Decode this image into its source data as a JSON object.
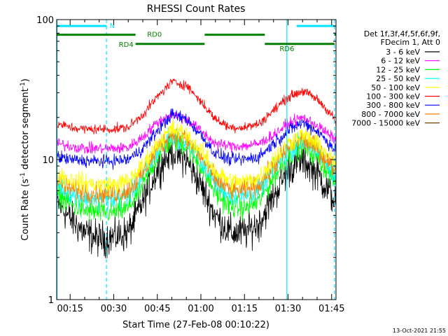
{
  "chart_data": {
    "type": "line",
    "title": "RHESSI Count Rates",
    "xlabel": "Start Time (27-Feb-08 00:10:22)",
    "ylabel": "Count Rate (s⁻¹ detector segment⁻¹)",
    "ylabel_main": "Count Rate (s",
    "ylabel_sup1": "-1",
    "ylabel_mid": " detector segment",
    "ylabel_sup2": "-1",
    "ylabel_end": ")",
    "yscale": "log",
    "ylim": [
      1,
      100
    ],
    "yticks": [
      "1",
      "10",
      "100"
    ],
    "xlim_minutes": [
      10.37,
      106.5
    ],
    "xticks": [
      {
        "m": 15,
        "label": "00:15"
      },
      {
        "m": 30,
        "label": "00:30"
      },
      {
        "m": 45,
        "label": "00:45"
      },
      {
        "m": 60,
        "label": "01:00"
      },
      {
        "m": 75,
        "label": "01:15"
      },
      {
        "m": 90,
        "label": "01:30"
      },
      {
        "m": 105,
        "label": "01:45"
      }
    ],
    "legend_header": [
      "Det 1f,3f,4f,5f,6f,9f,",
      "FDecim 1, Att 0"
    ],
    "legend_position": "right",
    "x_minutes": [
      10.4,
      15,
      20,
      25,
      30,
      35,
      40,
      45,
      50,
      55,
      60,
      65,
      70,
      75,
      80,
      85,
      90,
      95,
      100,
      105,
      106.5
    ],
    "series": [
      {
        "name": "3 - 6 keV",
        "color": "#000000",
        "values": [
          5.0,
          3.8,
          3.0,
          2.7,
          2.8,
          3.0,
          5.0,
          8.5,
          11.5,
          10.0,
          6.5,
          4.0,
          3.0,
          3.0,
          3.5,
          5.5,
          8.5,
          10.0,
          8.0,
          5.5,
          5.0
        ]
      },
      {
        "name": "6 - 12 keV",
        "color": "#ff00ff",
        "values": [
          13.0,
          12.5,
          12.0,
          12.0,
          12.0,
          12.2,
          14.5,
          18.5,
          21.0,
          19.5,
          16.0,
          13.0,
          12.5,
          12.5,
          13.0,
          15.0,
          18.0,
          20.0,
          17.5,
          14.5,
          14.0
        ]
      },
      {
        "name": "12 - 25 keV",
        "color": "#00ff00",
        "values": [
          5.8,
          4.8,
          4.3,
          4.2,
          4.2,
          4.5,
          6.5,
          10.5,
          14.0,
          12.5,
          9.0,
          5.8,
          4.6,
          4.5,
          5.0,
          7.5,
          10.5,
          12.5,
          10.5,
          7.5,
          7.0
        ]
      },
      {
        "name": "25 - 50 keV",
        "color": "#00ffff",
        "values": [
          6.8,
          5.8,
          5.3,
          5.2,
          5.2,
          5.5,
          7.5,
          11.5,
          15.0,
          13.5,
          10.0,
          6.8,
          5.6,
          5.5,
          6.0,
          8.5,
          11.5,
          13.5,
          11.5,
          8.5,
          8.0
        ]
      },
      {
        "name": "50 - 100 keV",
        "color": "#ffff00",
        "values": [
          8.0,
          7.2,
          6.8,
          6.6,
          6.6,
          7.0,
          9.0,
          13.0,
          16.5,
          15.0,
          11.5,
          8.2,
          7.0,
          6.9,
          7.5,
          10.0,
          13.0,
          15.0,
          13.0,
          10.0,
          9.5
        ]
      },
      {
        "name": "100 - 300 keV",
        "color": "#ff0000",
        "values": [
          18.0,
          17.0,
          16.5,
          16.5,
          16.5,
          17.0,
          21.0,
          28.0,
          36.0,
          34.0,
          26.0,
          19.5,
          17.0,
          17.0,
          18.0,
          22.5,
          28.0,
          31.0,
          27.0,
          21.0,
          18.0
        ]
      },
      {
        "name": "300 - 800 keV",
        "color": "#0000ff",
        "values": [
          10.5,
          10.0,
          9.8,
          9.7,
          9.8,
          10.0,
          12.0,
          16.0,
          21.0,
          19.5,
          15.0,
          11.0,
          10.0,
          10.0,
          10.5,
          13.0,
          16.0,
          18.5,
          16.0,
          12.5,
          11.5
        ]
      },
      {
        "name": "800 - 7000 keV",
        "color": "#ff8000",
        "values": [
          7.0,
          6.2,
          5.8,
          5.7,
          5.7,
          6.0,
          8.0,
          12.0,
          15.5,
          14.0,
          10.5,
          7.2,
          6.1,
          6.0,
          6.6,
          9.0,
          12.0,
          14.0,
          12.0,
          9.0,
          8.5
        ]
      },
      {
        "name": "7000 - 15000 keV",
        "color": "#804000",
        "values": []
      }
    ],
    "annotations": {
      "bars": [
        {
          "label": "N",
          "color": "#00e5ff",
          "y": 90,
          "segments": [
            [
              10.4,
              27.5
            ],
            [
              93.0,
              106.2
            ]
          ]
        },
        {
          "label": "RD0",
          "color": "#008000",
          "y": 78,
          "segments": [
            [
              10.4,
              37.5
            ],
            [
              61.3,
              82.0
            ],
            [
              106.0,
              106.5
            ]
          ]
        },
        {
          "label": "RD4",
          "color": "#008000",
          "y": 67,
          "segments": [
            [
              37.5,
              61.3
            ]
          ]
        },
        {
          "label": "RD6",
          "color": "#008000",
          "y": 67,
          "segments": [
            [
              82.0,
              106.0
            ]
          ]
        }
      ],
      "vlines_solid": [
        10.5,
        89.6
      ],
      "vlines_dashed": [
        27.5,
        106.0
      ]
    },
    "timestamp": "13-Oct-2021 21:55"
  }
}
